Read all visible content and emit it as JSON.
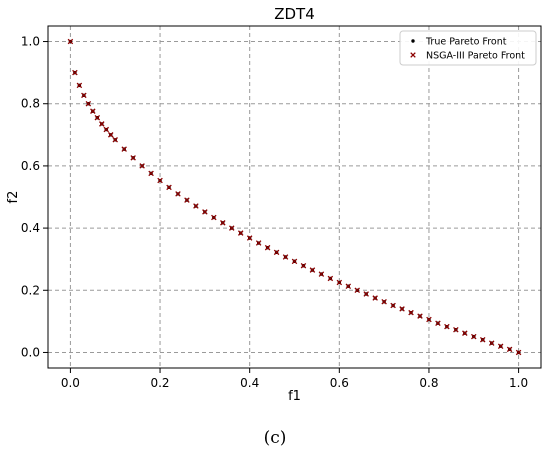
{
  "chart_data": {
    "type": "scatter",
    "title": "ZDT4",
    "xlabel": "f1",
    "ylabel": "f2",
    "xlim": [
      -0.05,
      1.05
    ],
    "ylim": [
      -0.05,
      1.05
    ],
    "x_ticks": [
      "0.0",
      "0.2",
      "0.4",
      "0.6",
      "0.8",
      "1.0"
    ],
    "y_ticks": [
      "0.0",
      "0.2",
      "0.4",
      "0.6",
      "0.8",
      "1.0"
    ],
    "grid": true,
    "legend_position": "top-right",
    "series": [
      {
        "name": "True Pareto Front",
        "marker": "dot",
        "color": "#000000",
        "x": [
          0.0,
          0.01,
          0.02,
          0.03,
          0.04,
          0.05,
          0.06,
          0.07,
          0.08,
          0.09,
          0.1,
          0.12,
          0.14,
          0.16,
          0.18,
          0.2,
          0.22,
          0.24,
          0.26,
          0.28,
          0.3,
          0.32,
          0.34,
          0.36,
          0.38,
          0.4,
          0.42,
          0.44,
          0.46,
          0.48,
          0.5,
          0.52,
          0.54,
          0.56,
          0.58,
          0.6,
          0.62,
          0.64,
          0.66,
          0.68,
          0.7,
          0.72,
          0.74,
          0.76,
          0.78,
          0.8,
          0.82,
          0.84,
          0.86,
          0.88,
          0.9,
          0.92,
          0.94,
          0.96,
          0.98,
          1.0
        ],
        "y": [
          1.0,
          0.9,
          0.859,
          0.827,
          0.8,
          0.776,
          0.755,
          0.735,
          0.717,
          0.7,
          0.684,
          0.654,
          0.626,
          0.6,
          0.576,
          0.553,
          0.531,
          0.51,
          0.49,
          0.471,
          0.452,
          0.434,
          0.417,
          0.4,
          0.384,
          0.368,
          0.352,
          0.337,
          0.322,
          0.307,
          0.293,
          0.279,
          0.265,
          0.252,
          0.238,
          0.225,
          0.213,
          0.2,
          0.188,
          0.175,
          0.163,
          0.151,
          0.14,
          0.128,
          0.117,
          0.106,
          0.094,
          0.083,
          0.073,
          0.062,
          0.051,
          0.041,
          0.03,
          0.02,
          0.01,
          0.0
        ]
      },
      {
        "name": "NSGA-III Pareto Front",
        "marker": "x",
        "color": "#8b0000",
        "x": [
          0.0,
          0.01,
          0.02,
          0.03,
          0.04,
          0.05,
          0.06,
          0.07,
          0.08,
          0.09,
          0.1,
          0.12,
          0.14,
          0.16,
          0.18,
          0.2,
          0.22,
          0.24,
          0.26,
          0.28,
          0.3,
          0.32,
          0.34,
          0.36,
          0.38,
          0.4,
          0.42,
          0.44,
          0.46,
          0.48,
          0.5,
          0.52,
          0.54,
          0.56,
          0.58,
          0.6,
          0.62,
          0.64,
          0.66,
          0.68,
          0.7,
          0.72,
          0.74,
          0.76,
          0.78,
          0.8,
          0.82,
          0.84,
          0.86,
          0.88,
          0.9,
          0.92,
          0.94,
          0.96,
          0.98,
          1.0
        ],
        "y": [
          1.0,
          0.9,
          0.859,
          0.827,
          0.8,
          0.776,
          0.755,
          0.735,
          0.717,
          0.7,
          0.684,
          0.654,
          0.626,
          0.6,
          0.576,
          0.553,
          0.531,
          0.51,
          0.49,
          0.471,
          0.452,
          0.434,
          0.417,
          0.4,
          0.384,
          0.368,
          0.352,
          0.337,
          0.322,
          0.307,
          0.293,
          0.279,
          0.265,
          0.252,
          0.238,
          0.225,
          0.213,
          0.2,
          0.188,
          0.175,
          0.163,
          0.151,
          0.14,
          0.128,
          0.117,
          0.106,
          0.094,
          0.083,
          0.073,
          0.062,
          0.051,
          0.041,
          0.03,
          0.02,
          0.01,
          0.0
        ]
      }
    ]
  },
  "caption": "(c)"
}
